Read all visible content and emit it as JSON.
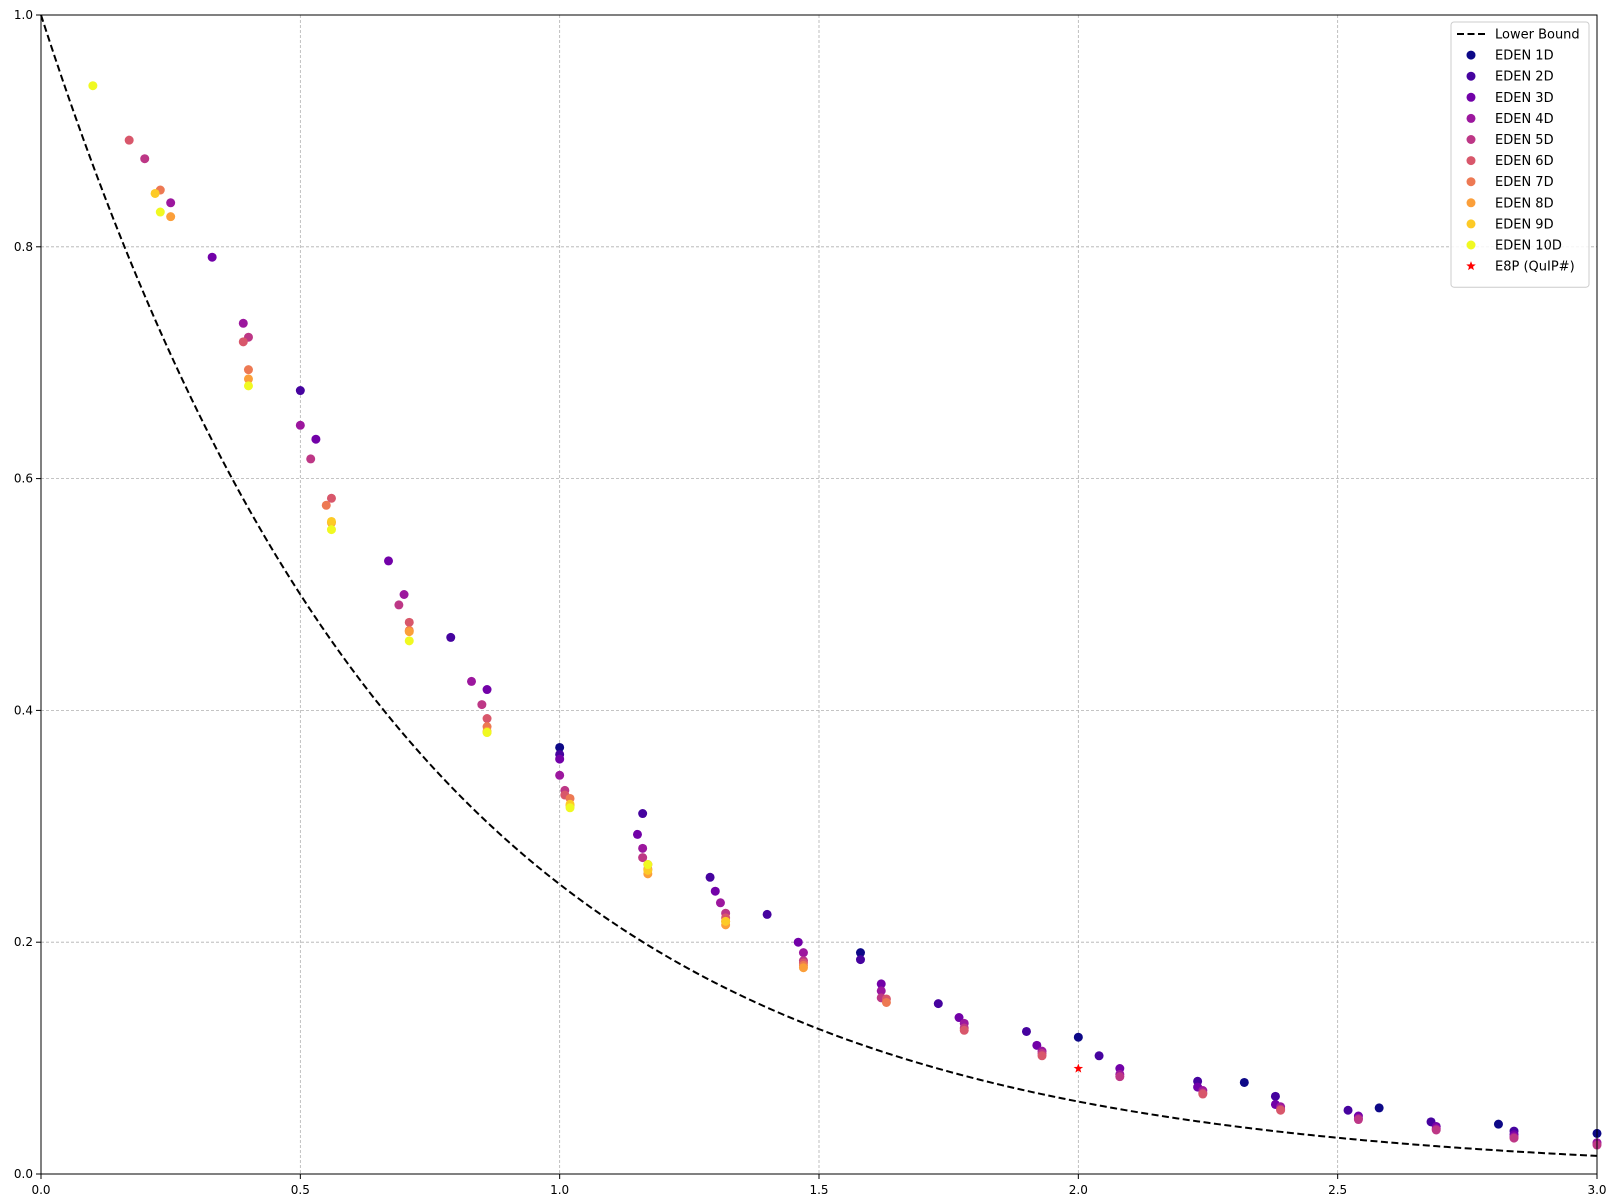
{
  "chart_data": {
    "type": "scatter",
    "title": "",
    "xlabel": "",
    "ylabel": "",
    "xlim": [
      0.0,
      3.0
    ],
    "ylim": [
      0.0,
      1.0
    ],
    "grid": true,
    "legend_position": "top-right",
    "x_ticks": [
      "0.0",
      "0.5",
      "1.0",
      "1.5",
      "2.0",
      "2.5",
      "3.0"
    ],
    "y_ticks": [
      "0.0",
      "0.2",
      "0.4",
      "0.6",
      "0.8",
      "1.0"
    ],
    "lower_bound": {
      "name": "Lower Bound",
      "color": "#000000",
      "style": "dashed",
      "formula": "y = 4^(-x)"
    },
    "series": [
      {
        "name": "EDEN 1D",
        "color": "#0d0887",
        "marker": "circle",
        "points": [
          [
            1.0,
            0.368
          ],
          [
            1.58,
            0.191
          ],
          [
            2.0,
            0.118
          ],
          [
            2.32,
            0.079
          ],
          [
            2.58,
            0.057
          ],
          [
            2.81,
            0.043
          ],
          [
            3.0,
            0.035
          ]
        ]
      },
      {
        "name": "EDEN 2D",
        "color": "#46039f",
        "marker": "circle",
        "points": [
          [
            0.5,
            0.676
          ],
          [
            0.79,
            0.463
          ],
          [
            1.0,
            0.362
          ],
          [
            1.16,
            0.311
          ],
          [
            1.29,
            0.256
          ],
          [
            1.4,
            0.224
          ],
          [
            1.58,
            0.185
          ],
          [
            1.73,
            0.147
          ],
          [
            1.9,
            0.123
          ],
          [
            2.04,
            0.102
          ],
          [
            2.23,
            0.08
          ],
          [
            2.38,
            0.067
          ],
          [
            2.52,
            0.055
          ],
          [
            2.68,
            0.045
          ],
          [
            2.84,
            0.037
          ]
        ]
      },
      {
        "name": "EDEN 3D",
        "color": "#7201a8",
        "marker": "circle",
        "points": [
          [
            0.33,
            0.791
          ],
          [
            0.53,
            0.634
          ],
          [
            0.67,
            0.529
          ],
          [
            0.86,
            0.418
          ],
          [
            1.0,
            0.358
          ],
          [
            1.15,
            0.293
          ],
          [
            1.3,
            0.244
          ],
          [
            1.46,
            0.2
          ],
          [
            1.62,
            0.164
          ],
          [
            1.77,
            0.135
          ],
          [
            1.92,
            0.111
          ],
          [
            2.08,
            0.091
          ],
          [
            2.23,
            0.075
          ],
          [
            2.38,
            0.06
          ],
          [
            2.54,
            0.05
          ],
          [
            2.69,
            0.041
          ],
          [
            2.84,
            0.034
          ]
        ]
      },
      {
        "name": "EDEN 4D",
        "color": "#9c179e",
        "marker": "circle",
        "points": [
          [
            0.25,
            0.838
          ],
          [
            0.39,
            0.734
          ],
          [
            0.5,
            0.646
          ],
          [
            0.7,
            0.5
          ],
          [
            0.83,
            0.425
          ],
          [
            1.0,
            0.344
          ],
          [
            1.16,
            0.281
          ],
          [
            1.31,
            0.234
          ],
          [
            1.47,
            0.191
          ],
          [
            1.62,
            0.158
          ],
          [
            1.78,
            0.13
          ],
          [
            1.93,
            0.106
          ],
          [
            2.08,
            0.086
          ],
          [
            2.24,
            0.072
          ],
          [
            2.39,
            0.058
          ],
          [
            2.54,
            0.048
          ],
          [
            2.69,
            0.039
          ],
          [
            2.84,
            0.032
          ],
          [
            3.0,
            0.027
          ]
        ]
      },
      {
        "name": "EDEN 5D",
        "color": "#bd3786",
        "marker": "circle",
        "points": [
          [
            0.2,
            0.876
          ],
          [
            0.4,
            0.722
          ],
          [
            0.52,
            0.617
          ],
          [
            0.69,
            0.491
          ],
          [
            0.85,
            0.405
          ],
          [
            1.01,
            0.331
          ],
          [
            1.16,
            0.273
          ],
          [
            1.32,
            0.225
          ],
          [
            1.47,
            0.184
          ],
          [
            1.62,
            0.152
          ],
          [
            1.78,
            0.126
          ],
          [
            1.93,
            0.104
          ],
          [
            2.08,
            0.084
          ],
          [
            2.24,
            0.07
          ],
          [
            2.39,
            0.056
          ],
          [
            2.54,
            0.047
          ],
          [
            2.69,
            0.038
          ],
          [
            2.84,
            0.031
          ],
          [
            3.0,
            0.025
          ]
        ]
      },
      {
        "name": "EDEN 6D",
        "color": "#d8576b",
        "marker": "circle",
        "points": [
          [
            0.17,
            0.892
          ],
          [
            0.39,
            0.718
          ],
          [
            0.56,
            0.583
          ],
          [
            0.71,
            0.476
          ],
          [
            0.86,
            0.393
          ],
          [
            1.01,
            0.327
          ],
          [
            1.17,
            0.267
          ],
          [
            1.32,
            0.221
          ],
          [
            1.47,
            0.182
          ],
          [
            1.63,
            0.151
          ],
          [
            1.78,
            0.124
          ],
          [
            1.93,
            0.102
          ],
          [
            2.24,
            0.069
          ],
          [
            2.39,
            0.055
          ]
        ]
      },
      {
        "name": "EDEN 7D",
        "color": "#ed7953",
        "marker": "circle",
        "points": [
          [
            0.23,
            0.849
          ],
          [
            0.4,
            0.694
          ],
          [
            0.55,
            0.577
          ],
          [
            0.71,
            0.469
          ],
          [
            0.86,
            0.386
          ],
          [
            1.02,
            0.324
          ],
          [
            1.17,
            0.263
          ],
          [
            1.32,
            0.218
          ],
          [
            1.47,
            0.18
          ],
          [
            1.63,
            0.148
          ]
        ]
      },
      {
        "name": "EDEN 8D",
        "color": "#fb9f3a",
        "marker": "circle",
        "points": [
          [
            0.25,
            0.826
          ],
          [
            0.4,
            0.686
          ],
          [
            0.56,
            0.562
          ],
          [
            0.71,
            0.468
          ],
          [
            0.86,
            0.382
          ],
          [
            1.02,
            0.318
          ],
          [
            1.17,
            0.259
          ],
          [
            1.32,
            0.215
          ],
          [
            1.47,
            0.178
          ]
        ]
      },
      {
        "name": "EDEN 9D",
        "color": "#fdca26",
        "marker": "circle",
        "points": [
          [
            0.22,
            0.846
          ],
          [
            0.56,
            0.563
          ],
          [
            0.86,
            0.381
          ],
          [
            1.02,
            0.319
          ],
          [
            1.17,
            0.262
          ],
          [
            1.32,
            0.218
          ]
        ]
      },
      {
        "name": "EDEN 10D",
        "color": "#f0f921",
        "marker": "circle",
        "points": [
          [
            0.1,
            0.939
          ],
          [
            0.23,
            0.83
          ],
          [
            0.4,
            0.68
          ],
          [
            0.56,
            0.556
          ],
          [
            0.71,
            0.46
          ],
          [
            0.86,
            0.381
          ],
          [
            1.02,
            0.316
          ],
          [
            1.17,
            0.267
          ]
        ]
      },
      {
        "name": "E8P (QuIP#)",
        "color": "#ff0000",
        "marker": "star",
        "points": [
          [
            2.0,
            0.091
          ]
        ]
      }
    ]
  }
}
